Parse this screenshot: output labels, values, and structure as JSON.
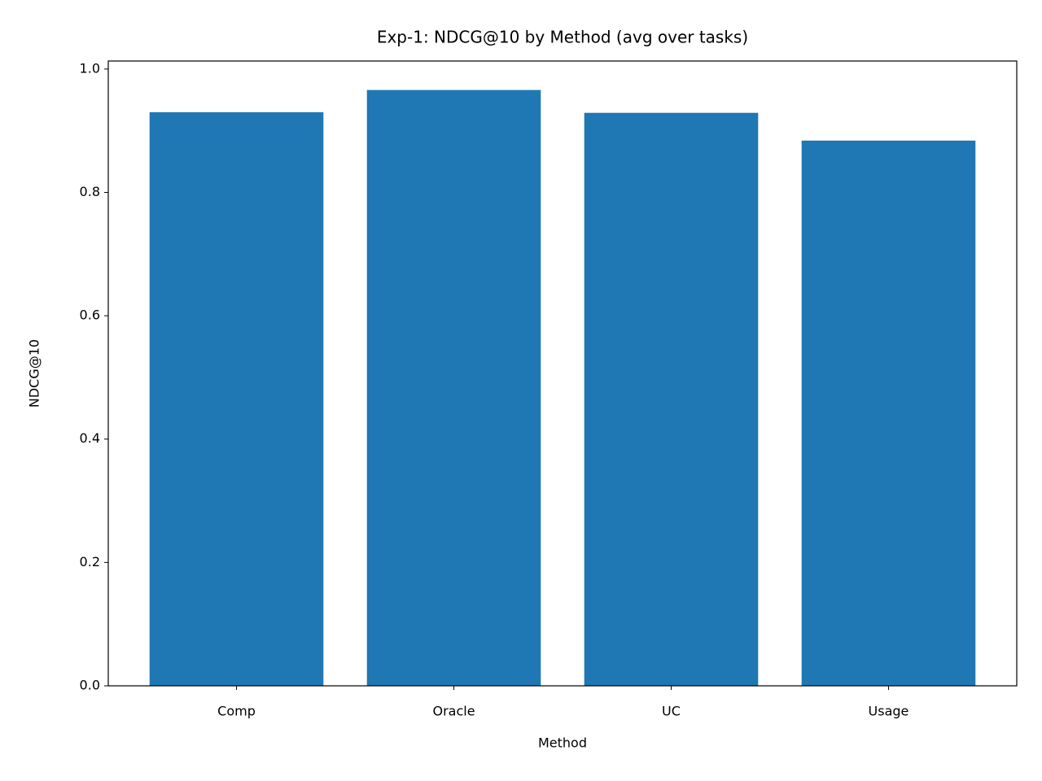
{
  "chart_data": {
    "type": "bar",
    "title": "Exp-1: NDCG@10 by Method (avg over tasks)",
    "x_label": "Method",
    "y_label": "NDCG@10",
    "categories": [
      "Comp",
      "Oracle",
      "UC",
      "Usage"
    ],
    "values": [
      0.93,
      0.966,
      0.929,
      0.884
    ],
    "color": "#1f77b4",
    "ylim": [
      0,
      1.013
    ],
    "yticks": [
      {
        "value": 0,
        "label": "0.0"
      },
      0.2,
      0.4,
      0.6,
      0.8,
      {
        "value": 1,
        "label": "1.0"
      }
    ],
    "grid": false
  }
}
